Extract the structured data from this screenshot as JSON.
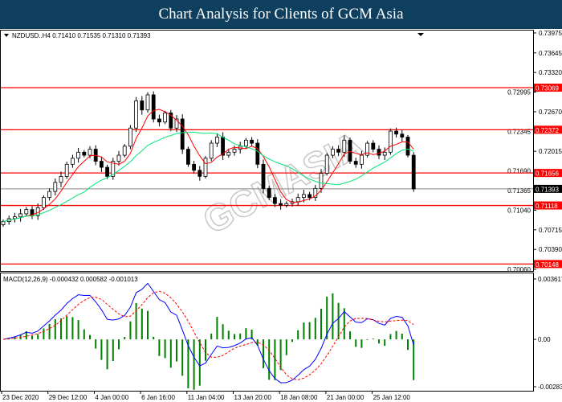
{
  "header": {
    "title": "Chart Analysis for Clients of GCM Asia"
  },
  "watermark": "GCMASIA",
  "chart_data": [
    {
      "type": "candlestick",
      "symbol_label": "NZDUSD..H4",
      "ohlc_label": "0.71410 0.71535 0.71310 0.71393",
      "closes": [
        0.7085,
        0.709,
        0.7093,
        0.7098,
        0.7105,
        0.7095,
        0.7108,
        0.7125,
        0.7135,
        0.715,
        0.716,
        0.718,
        0.719,
        0.72,
        0.7195,
        0.7205,
        0.7185,
        0.7175,
        0.716,
        0.7185,
        0.7195,
        0.721,
        0.724,
        0.7285,
        0.727,
        0.7295,
        0.7255,
        0.725,
        0.7265,
        0.724,
        0.7255,
        0.7205,
        0.718,
        0.717,
        0.716,
        0.719,
        0.7215,
        0.7225,
        0.7195,
        0.72,
        0.7205,
        0.721,
        0.722,
        0.7215,
        0.718,
        0.714,
        0.7125,
        0.7115,
        0.7112,
        0.7115,
        0.7118,
        0.7125,
        0.713,
        0.7125,
        0.714,
        0.7165,
        0.7195,
        0.7205,
        0.72,
        0.722,
        0.7185,
        0.718,
        0.7195,
        0.7215,
        0.7205,
        0.7195,
        0.72,
        0.7235,
        0.723,
        0.7225,
        0.7195,
        0.71393
      ],
      "ylim": [
        0.7006,
        0.73975
      ],
      "y_ticks": [
        "0.73975",
        "0.73645",
        "0.73320",
        "0.72995",
        "0.72670",
        "0.72345",
        "0.72015",
        "0.71690",
        "0.71365",
        "0.71040",
        "0.70715",
        "0.70390",
        "0.70060"
      ],
      "levels": [
        {
          "value": 0.73069,
          "label": "0.73069"
        },
        {
          "value": 0.72372,
          "label": "0.72372"
        },
        {
          "value": 0.71656,
          "label": "0.71656"
        },
        {
          "value": 0.71118,
          "label": "0.71118"
        },
        {
          "value": 0.70148,
          "label": "0.70148"
        }
      ],
      "current_price": {
        "value": 0.71393,
        "label": "0.71393"
      },
      "x_ticks": [
        "23 Dec 2020",
        "29 Dec 12:00",
        "4 Jan 00:00",
        "6 Jan 16:00",
        "11 Jan 04:00",
        "13 Jan 20:00",
        "18 Jan 08:00",
        "21 Jan 00:00",
        "25 Jan 12:00"
      ],
      "moving_averages": [
        {
          "color": "#ff0000"
        },
        {
          "color": "#00e676"
        }
      ],
      "colors": {
        "level": "#ff0000",
        "candle": "#000000",
        "current": "#000000"
      }
    },
    {
      "type": "macd",
      "label": "MACD(12,26,9) -0.000432 0.000582 -0.001013",
      "ylim": [
        -0.002836,
        0.003617
      ],
      "y_ticks": [
        "0.003617",
        "0.00",
        "-0.002836"
      ],
      "colors": {
        "macd": "#0000ff",
        "signal": "#ff0000",
        "histogram": "#008000"
      }
    }
  ]
}
